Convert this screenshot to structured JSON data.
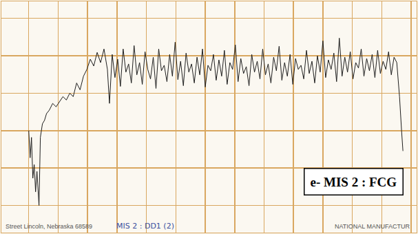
{
  "chart_data": {
    "type": "line",
    "color": "#1e1e1e",
    "line_style": "solid",
    "grid": true,
    "tick_labels": false,
    "xlim": [
      0,
      607
    ],
    "ylim": [
      0,
      340
    ],
    "xticks": [
      40,
      83,
      126,
      169,
      212,
      255,
      298,
      341,
      384,
      427,
      470,
      513,
      556,
      599
    ],
    "yticks": [
      40,
      95,
      150,
      205,
      260,
      315
    ],
    "annotations": [
      "e- MIS 2 : FCG",
      "Street Lincoln, Nebraska 68589",
      "MIS 2 : DD1 (2)",
      "NATIONAL MANUFACTUR"
    ],
    "x": [
      40,
      42,
      44,
      46,
      48,
      50,
      52,
      55,
      57,
      60,
      63,
      66,
      70,
      75,
      80,
      85,
      90,
      95,
      100,
      105,
      110,
      115,
      120,
      125,
      130,
      135,
      140,
      145,
      150,
      155,
      158,
      162,
      166,
      170,
      174,
      178,
      182,
      186,
      190,
      194,
      198,
      202,
      206,
      210,
      214,
      218,
      222,
      226,
      230,
      234,
      238,
      242,
      246,
      250,
      254,
      258,
      262,
      266,
      270,
      274,
      278,
      282,
      286,
      290,
      294,
      298,
      302,
      306,
      310,
      314,
      318,
      322,
      326,
      330,
      334,
      338,
      342,
      346,
      350,
      354,
      358,
      362,
      366,
      370,
      374,
      378,
      382,
      386,
      390,
      394,
      398,
      402,
      406,
      410,
      414,
      418,
      422,
      426,
      430,
      434,
      438,
      442,
      446,
      450,
      454,
      458,
      462,
      466,
      470,
      474,
      478,
      482,
      486,
      490,
      494,
      498,
      502,
      506,
      510,
      514,
      518,
      522,
      526,
      530,
      534,
      538,
      542,
      546,
      550,
      554,
      558,
      562,
      566,
      570,
      574,
      578,
      582,
      585,
      587
    ],
    "values": [
      150,
      110,
      140,
      80,
      100,
      60,
      90,
      40,
      140,
      160,
      165,
      175,
      180,
      190,
      185,
      192,
      200,
      195,
      205,
      200,
      220,
      210,
      230,
      240,
      255,
      245,
      265,
      250,
      270,
      240,
      190,
      262,
      228,
      255,
      215,
      270,
      236,
      248,
      220,
      275,
      232,
      250,
      218,
      266,
      240,
      226,
      258,
      212,
      270,
      238,
      246,
      222,
      262,
      230,
      280,
      225,
      252,
      216,
      264,
      236,
      248,
      220,
      258,
      232,
      270,
      214,
      246,
      238,
      262,
      224,
      254,
      230,
      268,
      218,
      250,
      240,
      276,
      222,
      256,
      234,
      244,
      216,
      262,
      236,
      252,
      226,
      270,
      232,
      248,
      220,
      258,
      238,
      274,
      224,
      250,
      230,
      262,
      218,
      256,
      240,
      246,
      226,
      268,
      234,
      252,
      220,
      260,
      236,
      282,
      228,
      254,
      240,
      264,
      222,
      286,
      230,
      258,
      236,
      266,
      226,
      250,
      242,
      270,
      230,
      256,
      238,
      262,
      228,
      268,
      234,
      252,
      240,
      266,
      232,
      258,
      250,
      200,
      150,
      120
    ]
  }
}
